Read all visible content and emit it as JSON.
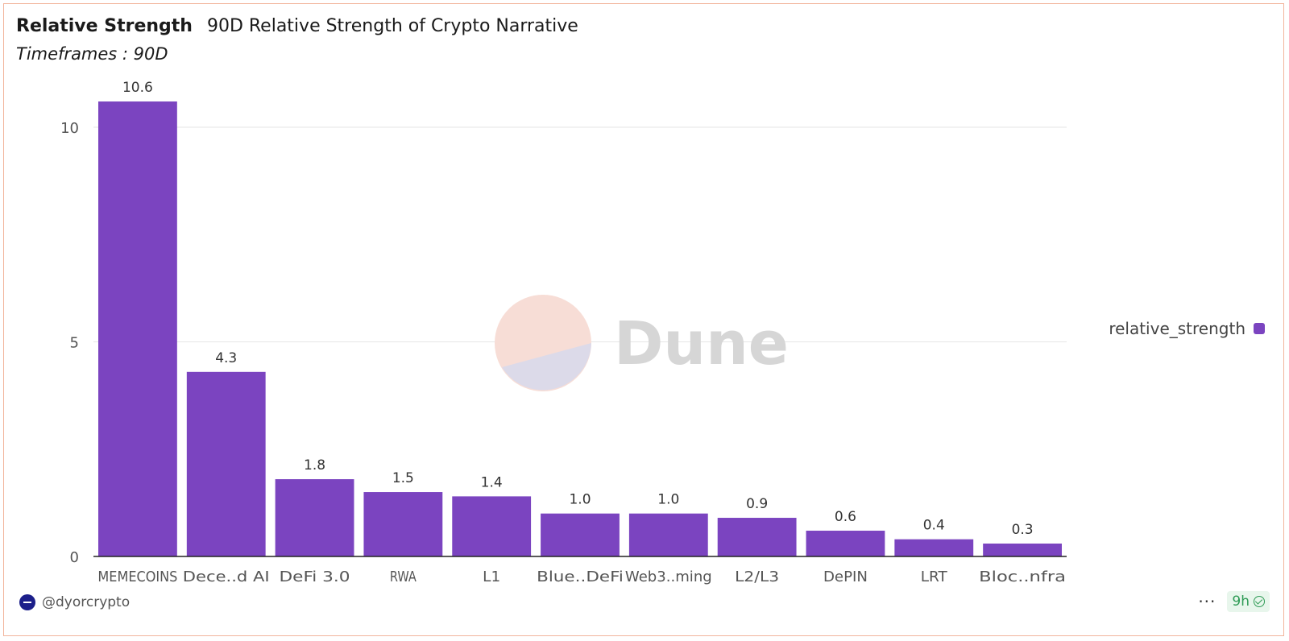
{
  "header": {
    "title": "Relative Strength",
    "subtitle": "90D Relative Strength of Crypto Narrative",
    "timeframe": "Timeframes : 90D"
  },
  "watermark": {
    "text": "Dune"
  },
  "legend": {
    "label": "relative_strength",
    "color": "#7b44c0"
  },
  "footer": {
    "author": "@dyorcrypto",
    "age": "9h",
    "more": "···"
  },
  "chart_data": {
    "type": "bar",
    "categories": [
      "MEMECOINS",
      "Dece..d AI",
      "DeFi 3.0",
      "RWA",
      "L1",
      "Blue..DeFi",
      "Web3..ming",
      "L2/L3",
      "DePIN",
      "LRT",
      "Bloc..nfra"
    ],
    "series": [
      {
        "name": "relative_strength",
        "values": [
          10.6,
          4.3,
          1.8,
          1.5,
          1.4,
          1.0,
          1.0,
          0.9,
          0.6,
          0.4,
          0.3
        ],
        "labels": [
          "10.6",
          "4.3",
          "1.8",
          "1.5",
          "1.4",
          "1.0",
          "1.0",
          "0.9",
          "0.6",
          "0.4",
          "0.3"
        ]
      }
    ],
    "yticks": [
      0,
      5,
      10
    ],
    "ylim": [
      0,
      10.6
    ],
    "grid": true,
    "legend_position": "right",
    "bar_color": "#7b44c0"
  }
}
